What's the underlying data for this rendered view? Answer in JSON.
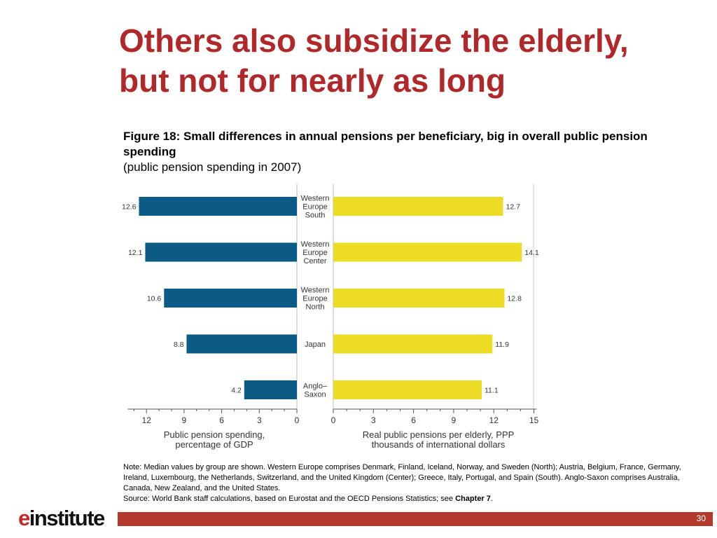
{
  "slide": {
    "title_line1": "Others also subsidize the elderly,",
    "title_line2": "but not for nearly as long",
    "figure_title": "Figure 18: Small differences in annual pensions per beneficiary, big in overall public pension spending",
    "figure_subtitle": "(public pension spending in 2007)",
    "note": "Note: Median values by group are shown. Western Europe comprises Denmark, Finland, Iceland, Norway, and Sweden (North); Austria, Belgium, France, Germany, Ireland, Luxembourg, the Netherlands, Switzerland, and the United Kingdom (Center); Greece, Italy, Portugal, and Spain (South). Anglo-Saxon comprises Australia, Canada, New Zealand, and the United States.",
    "source_prefix": "Source: World Bank staff calculations, based on Eurostat and the OECD Pensions Statistics; see ",
    "source_bold": "Chapter 7",
    "source_suffix": ".",
    "logo_e": "e",
    "logo_rest": "institute",
    "page_number": "30",
    "accent_color": "#b0282a",
    "footer_color": "#b33a2a"
  },
  "chart_data": [
    {
      "type": "bar",
      "orientation": "horizontal",
      "direction": "right-to-left",
      "categories": [
        [
          "Western",
          "Europe",
          "South"
        ],
        [
          "Western",
          "Europe",
          "Center"
        ],
        [
          "Western",
          "Europe",
          "North"
        ],
        [
          "Japan"
        ],
        [
          "Anglo–",
          "Saxon"
        ]
      ],
      "values": [
        12.6,
        12.1,
        10.6,
        8.8,
        4.2
      ],
      "value_labels": [
        "12.6",
        "12.1",
        "10.6",
        "8.8",
        "4.2"
      ],
      "xlabel": [
        "Public pension spending,",
        "percentage of GDP"
      ],
      "xlim": [
        0,
        13.5
      ],
      "ticks": [
        12,
        9,
        6,
        3,
        0
      ],
      "bar_color": "#0c5a86",
      "grid": false
    },
    {
      "type": "bar",
      "orientation": "horizontal",
      "direction": "left-to-right",
      "categories": [
        [
          "Western",
          "Europe",
          "South"
        ],
        [
          "Western",
          "Europe",
          "Center"
        ],
        [
          "Western",
          "Europe",
          "North"
        ],
        [
          "Japan"
        ],
        [
          "Anglo–",
          "Saxon"
        ]
      ],
      "values": [
        12.7,
        14.1,
        12.8,
        11.9,
        11.1
      ],
      "value_labels": [
        "12.7",
        "14.1",
        "12.8",
        "11.9",
        "11.1"
      ],
      "xlabel": [
        "Real public pensions per elderly, PPP",
        "thousands of international dollars"
      ],
      "xlim": [
        0,
        15
      ],
      "ticks": [
        0,
        3,
        6,
        9,
        12,
        15
      ],
      "bar_color": "#ecdc26",
      "grid": false
    }
  ]
}
